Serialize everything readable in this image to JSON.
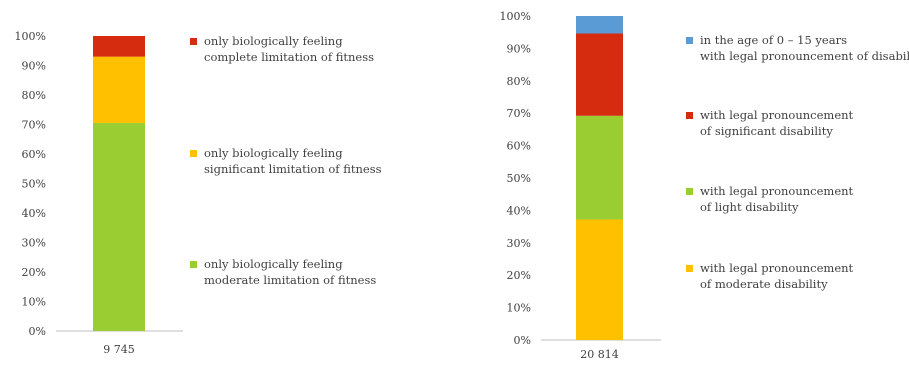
{
  "chart_data": [
    {
      "type": "bar",
      "stacked": true,
      "categories": [
        "9 745"
      ],
      "ylim": [
        0,
        100
      ],
      "yticks": [
        "0%",
        "10%",
        "20%",
        "30%",
        "40%",
        "50%",
        "60%",
        "70%",
        "80%",
        "90%",
        "100%"
      ],
      "grid": false,
      "legend_position": "right",
      "series": [
        {
          "lines": [
            "only biologically feeling",
            "moderate limitation of fitness"
          ],
          "values": [
            70.5
          ],
          "color": "#9ACD32"
        },
        {
          "lines": [
            "only biologically feeling",
            "significant limitation of fitness"
          ],
          "values": [
            22.5
          ],
          "color": "#FFC000"
        },
        {
          "lines": [
            "only biologically feeling",
            "complete limitation of fitness"
          ],
          "values": [
            7.0
          ],
          "color": "#D52B0F"
        }
      ]
    },
    {
      "type": "bar",
      "stacked": true,
      "categories": [
        "20 814"
      ],
      "ylim": [
        0,
        100
      ],
      "yticks": [
        "0%",
        "10%",
        "20%",
        "30%",
        "40%",
        "50%",
        "60%",
        "70%",
        "80%",
        "90%",
        "100%"
      ],
      "grid": false,
      "legend_position": "right",
      "series": [
        {
          "lines": [
            "with legal pronouncement",
            "of moderate disability"
          ],
          "values": [
            37.2
          ],
          "color": "#FFC000"
        },
        {
          "lines": [
            "with legal pronouncement",
            "of light disability"
          ],
          "values": [
            32.0
          ],
          "color": "#9ACD32"
        },
        {
          "lines": [
            "with legal pronouncement",
            "of significant disability"
          ],
          "values": [
            25.4
          ],
          "color": "#D52B0F"
        },
        {
          "lines": [
            "in the age of 0 – 15 years",
            "with legal pronouncement of disability"
          ],
          "values": [
            5.4
          ],
          "color": "#5B9BD5"
        }
      ]
    }
  ]
}
